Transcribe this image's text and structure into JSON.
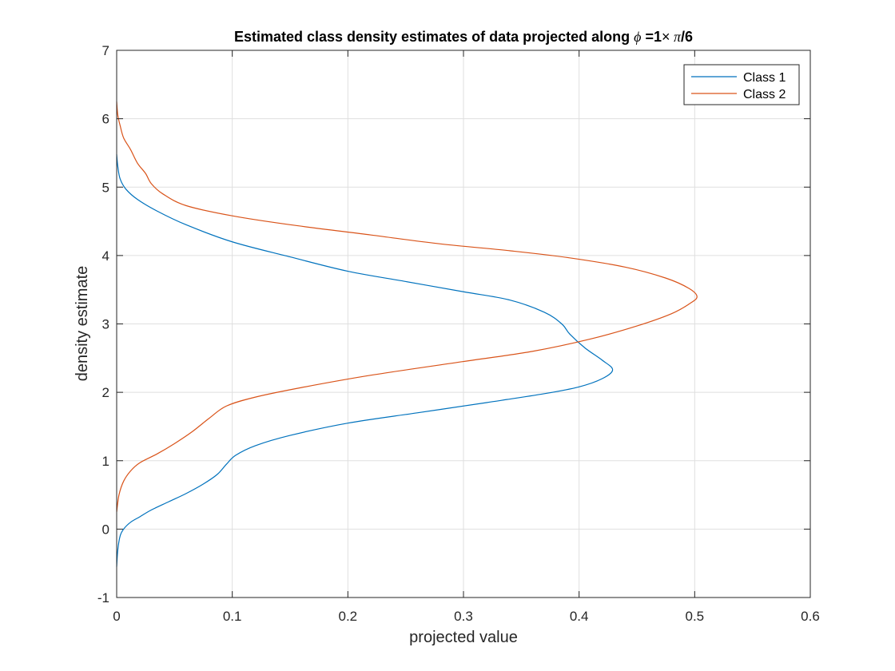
{
  "chart_data": {
    "type": "line",
    "title": {
      "prefix": "Estimated class density estimates of data projected along ",
      "symbol": "ϕ",
      "mid": " =1",
      "times": "×",
      "pi": " π",
      "suffix": "/6"
    },
    "xlabel": "projected value",
    "ylabel": "density estimate",
    "xlim": [
      0,
      0.6
    ],
    "ylim": [
      -1,
      7
    ],
    "xticks": [
      0,
      0.1,
      0.2,
      0.3,
      0.4,
      0.5,
      0.6
    ],
    "xtick_labels": [
      "0",
      "0.1",
      "0.2",
      "0.3",
      "0.4",
      "0.5",
      "0.6"
    ],
    "yticks": [
      -1,
      0,
      1,
      2,
      3,
      4,
      5,
      6,
      7
    ],
    "ytick_labels": [
      "-1",
      "0",
      "1",
      "2",
      "3",
      "4",
      "5",
      "6",
      "7"
    ],
    "grid": true,
    "legend_position": "top-right",
    "series": [
      {
        "name": "Class 1",
        "color": "#0072BD",
        "points": [
          [
            0.0,
            -0.55
          ],
          [
            0.001,
            -0.3
          ],
          [
            0.003,
            -0.1
          ],
          [
            0.006,
            0.0
          ],
          [
            0.012,
            0.1
          ],
          [
            0.02,
            0.18
          ],
          [
            0.03,
            0.28
          ],
          [
            0.045,
            0.4
          ],
          [
            0.06,
            0.52
          ],
          [
            0.075,
            0.66
          ],
          [
            0.087,
            0.8
          ],
          [
            0.095,
            0.95
          ],
          [
            0.103,
            1.08
          ],
          [
            0.12,
            1.22
          ],
          [
            0.15,
            1.37
          ],
          [
            0.2,
            1.55
          ],
          [
            0.26,
            1.7
          ],
          [
            0.32,
            1.85
          ],
          [
            0.37,
            1.98
          ],
          [
            0.4,
            2.08
          ],
          [
            0.42,
            2.2
          ],
          [
            0.429,
            2.33
          ],
          [
            0.42,
            2.47
          ],
          [
            0.405,
            2.65
          ],
          [
            0.392,
            2.85
          ],
          [
            0.385,
            3.0
          ],
          [
            0.37,
            3.17
          ],
          [
            0.34,
            3.35
          ],
          [
            0.3,
            3.47
          ],
          [
            0.25,
            3.62
          ],
          [
            0.2,
            3.77
          ],
          [
            0.15,
            3.98
          ],
          [
            0.1,
            4.2
          ],
          [
            0.06,
            4.45
          ],
          [
            0.035,
            4.65
          ],
          [
            0.018,
            4.82
          ],
          [
            0.008,
            4.97
          ],
          [
            0.003,
            5.12
          ],
          [
            0.001,
            5.3
          ],
          [
            0.0,
            5.48
          ]
        ]
      },
      {
        "name": "Class 2",
        "color": "#D95319",
        "points": [
          [
            0.0,
            0.25
          ],
          [
            0.002,
            0.5
          ],
          [
            0.006,
            0.7
          ],
          [
            0.012,
            0.85
          ],
          [
            0.02,
            0.97
          ],
          [
            0.035,
            1.1
          ],
          [
            0.05,
            1.25
          ],
          [
            0.065,
            1.42
          ],
          [
            0.08,
            1.62
          ],
          [
            0.095,
            1.8
          ],
          [
            0.12,
            1.93
          ],
          [
            0.16,
            2.07
          ],
          [
            0.22,
            2.25
          ],
          [
            0.3,
            2.45
          ],
          [
            0.36,
            2.6
          ],
          [
            0.41,
            2.78
          ],
          [
            0.45,
            2.97
          ],
          [
            0.48,
            3.15
          ],
          [
            0.496,
            3.3
          ],
          [
            0.502,
            3.4
          ],
          [
            0.495,
            3.52
          ],
          [
            0.475,
            3.67
          ],
          [
            0.44,
            3.83
          ],
          [
            0.39,
            3.97
          ],
          [
            0.34,
            4.07
          ],
          [
            0.28,
            4.17
          ],
          [
            0.22,
            4.3
          ],
          [
            0.15,
            4.45
          ],
          [
            0.1,
            4.58
          ],
          [
            0.06,
            4.73
          ],
          [
            0.04,
            4.9
          ],
          [
            0.03,
            5.05
          ],
          [
            0.025,
            5.2
          ],
          [
            0.018,
            5.35
          ],
          [
            0.012,
            5.55
          ],
          [
            0.006,
            5.72
          ],
          [
            0.003,
            5.9
          ],
          [
            0.001,
            6.05
          ],
          [
            0.0,
            6.25
          ]
        ]
      }
    ]
  }
}
